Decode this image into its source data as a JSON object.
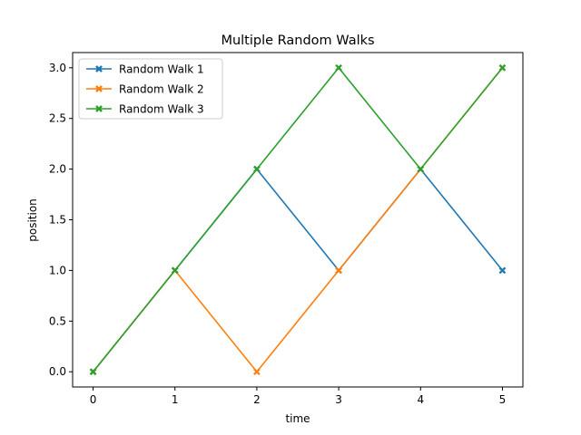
{
  "chart_data": {
    "type": "line",
    "title": "Multiple Random Walks",
    "xlabel": "time",
    "ylabel": "position",
    "x": [
      0,
      1,
      2,
      3,
      4,
      5
    ],
    "xticks": [
      "0",
      "1",
      "2",
      "3",
      "4",
      "5"
    ],
    "yticks": [
      "0.0",
      "0.5",
      "1.0",
      "1.5",
      "2.0",
      "2.5",
      "3.0"
    ],
    "xlim": [
      -0.25,
      5.25
    ],
    "ylim": [
      -0.15,
      3.15
    ],
    "grid": false,
    "legend_position": "upper-left",
    "marker": "x-filled",
    "series": [
      {
        "name": "Random Walk 1",
        "color": "#1f77b4",
        "values": [
          0,
          1,
          2,
          1,
          2,
          1
        ]
      },
      {
        "name": "Random Walk 2",
        "color": "#ff7f0e",
        "values": [
          0,
          1,
          0,
          1,
          2,
          3
        ]
      },
      {
        "name": "Random Walk 3",
        "color": "#2ca02c",
        "values": [
          0,
          1,
          2,
          3,
          2,
          3
        ]
      }
    ]
  }
}
